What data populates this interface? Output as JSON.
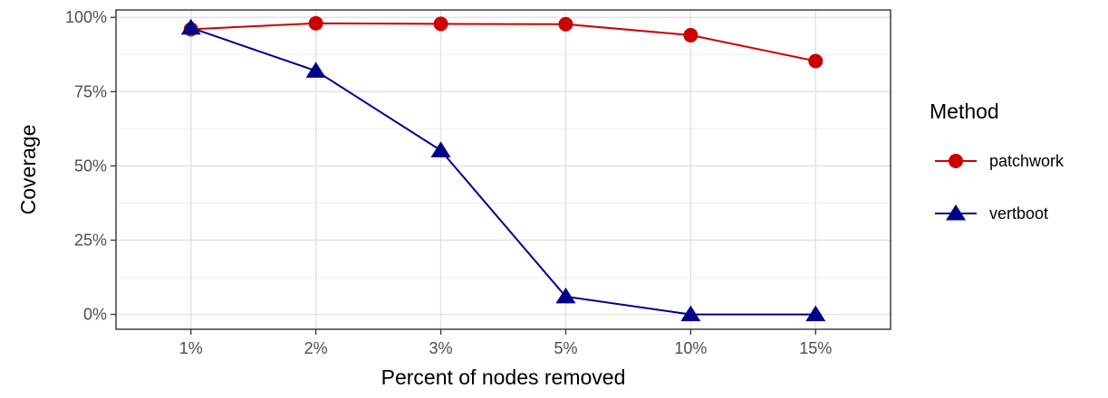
{
  "chart_data": {
    "type": "line",
    "xlabel": "Percent of nodes removed",
    "ylabel": "Coverage",
    "categories": [
      "1%",
      "2%",
      "3%",
      "5%",
      "10%",
      "15%"
    ],
    "yticks": [
      0,
      25,
      50,
      75,
      100
    ],
    "ytick_labels": [
      "0%",
      "25%",
      "50%",
      "75%",
      "100%"
    ],
    "ylim": [
      -5,
      102.5
    ],
    "grid": true,
    "legend": {
      "title": "Method",
      "position": "right"
    },
    "series": [
      {
        "name": "patchwork",
        "values": [
          96.0,
          98.0,
          97.8,
          97.7,
          94.0,
          85.3
        ],
        "color": "#cc0000",
        "marker": "circle"
      },
      {
        "name": "vertboot",
        "values": [
          96.5,
          82.0,
          55.2,
          6.0,
          0.0,
          0.0
        ],
        "color": "#00008b",
        "marker": "triangle"
      }
    ]
  }
}
